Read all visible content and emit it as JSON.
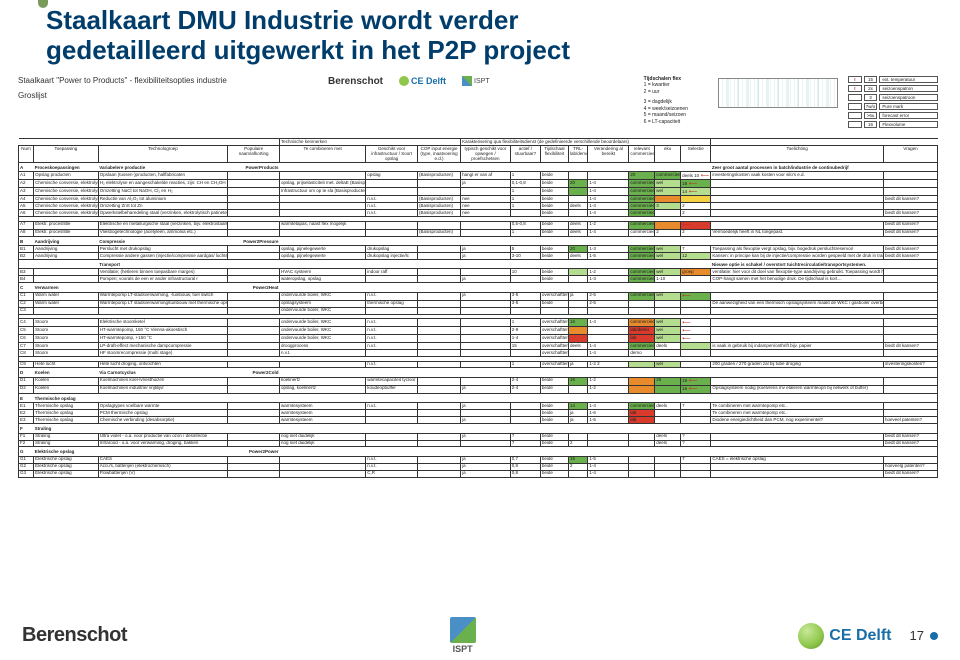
{
  "page": {
    "number": "17"
  },
  "title_line1": "Staalkaart DMU Industrie wordt verder",
  "title_line2": "gedetailleerd uitgewerkt in het P2P project",
  "sheet": {
    "title": "Staalkaart \"Power to Products\" - flexibiliteitsopties industrie",
    "subtitle": "Groslijst"
  },
  "logos": {
    "berenschot": "Berenschot",
    "ce": "CE Delft",
    "ispt": "ISPT"
  },
  "legend_time": {
    "title": "Tijdschalen flex",
    "items": [
      "1 = kwartier",
      "2 = uur",
      "3 = dagdelijk",
      "4 = week/seizoenen",
      "5 = maand/seizoen",
      "6 = LT-capaciteit"
    ]
  },
  "mini_boxes": [
    {
      "c1": "!",
      "c2": "15",
      "lab": "ext. temperatuur"
    },
    {
      "c1": "!",
      "c2": "2x",
      "lab": "seizoenspatron"
    },
    {
      "c1": "",
      "c2": "3",
      "lab": "seizoenspatroon"
    },
    {
      "c1": "",
      "c2": "7w/o",
      "lab": "Pure mark"
    },
    {
      "c1": "",
      "c2": ">6u",
      "lab": "forecast error"
    },
    {
      "c1": "",
      "c2": "16",
      "lab": "Flexvolume"
    }
  ],
  "headers": {
    "supers": [
      "Technische kenmerken",
      "",
      "Karakterisering qua flexibiliteitsdienst (de gedefinieerde verschillende beoordelaars)",
      ""
    ],
    "cols": [
      "Num",
      "Toepassing",
      "Technologroep",
      "Populaire naam/afkorting",
      "Te combineren met",
      "Geschikt voor infrastructuur / Soort opslag",
      "COP input energie (type, maatvoering e.d.)",
      "typisch geschikt voor opwegen / proefschetsen",
      "actief / stuurbaar?",
      "Tijdschaal flexibiliteit",
      "TRL-lab/demo/…",
      "Verandering al bereikt",
      "relevant commercieel",
      "eko",
      "Selectie",
      "Toelichting",
      "Vragen"
    ]
  },
  "sections": [
    {
      "letter": "A",
      "name": "Proceskoepassingen",
      "powercat": "PowerProducts",
      "techhead": "Variabelere productie",
      "note_right": "Zeer groot aantal processen in batch/industrie de continubedrijf",
      "rows": [
        {
          "num": "A1",
          "app": "Opslag producten",
          "tech": "Opslaan (tussen-)producten, halffabricaten",
          "pop": "",
          "comb": "",
          "ges": "opslag",
          "cop": "(Basisproducten)",
          "typ": "hangt er van af",
          "act": "1",
          "tijd": "beide",
          "trl": "",
          "ver": "",
          "rel_cls": "c-g",
          "rel": "20",
          "eko_cls": "c-g",
          "eko": "commercieel",
          "sel": "deels",
          "selnum": "10",
          "arrow": true,
          "toe": "investeringskosten vaak kosten voor silo's e.d."
        },
        {
          "num": "A2",
          "app": "Chemische conversie, elektrolyse",
          "tech": "H₂ elektrolyse en aangeschakelde reacties, zijn: CH en CH₂OH",
          "comb": "opslag, prijselasticiteit met. deltaE (Basisproducten)",
          "typ": "ja",
          "act": "0,1-0,8",
          "tijd": "beide",
          "trl_cls": "c-g",
          "trl": "20",
          "ver": "1-4",
          "rel_cls": "c-g",
          "rel": "commercieel",
          "eko_cls": "c-lg",
          "eko": "wel",
          "sel_cls": "c-g",
          "sel": "18",
          "arrow": true
        },
        {
          "num": "A3",
          "app": "Chemische conversie, elektrolyse",
          "tech": "Omzetting NaCl tot NaOH, Cl₂ en H₂",
          "comb": "Infrastructuur om op te sla (Basisproducten)",
          "act": "1",
          "tijd": "beide",
          "trl_cls": "c-g",
          "trl": "",
          "ver": "1-4",
          "rel_cls": "c-g",
          "rel": "commercieel",
          "eko_cls": "c-lg",
          "eko": "wel",
          "sel_cls": "c-lg",
          "sel": "14",
          "arrow": true
        },
        {
          "num": "A4",
          "app": "Chemische conversie, elektrolyse",
          "tech": "Reductie van Al₂O₃ tot aluminium",
          "ges": "n.v.t.",
          "cop": "(Basisproducten)",
          "typ": "nee",
          "act": "1",
          "tijd": "beide",
          "ver": "1-4",
          "rel_cls": "c-g",
          "rel": "commercieel",
          "eko_cls": "c-o",
          "eko": "",
          "sel_cls": "c-y",
          "sel": "",
          "vra": "biedt dit kansen?"
        },
        {
          "num": "A5",
          "app": "Chemische conversie, elektrolyse",
          "tech": "Omzetting ZnS tot Zn",
          "ges": "n.v.t.",
          "cop": "(Basisproducten)",
          "typ": "nee",
          "act": "1",
          "tijd": "beide",
          "trl": "deels",
          "ver": "1-4",
          "rel_cls": "c-g",
          "rel": "commercieel",
          "eko_cls": "c-lg",
          "eko": "3",
          "sel_cls": "",
          "sel": "2"
        },
        {
          "num": "A6",
          "app": "Chemische conversie, elektrolyse",
          "tech": "Opwerkstelbeharedeling staal (verzinken, elektrolytisch patinete)",
          "ges": "n.v.t.",
          "cop": "(Basisproducten)",
          "typ": "nee",
          "tijd": "beide",
          "ver": "1-4",
          "rel_cls": "c-g",
          "rel": "commercieel",
          "sel": "2",
          "vra": "biedt dit kansen?"
        },
        {
          "spacer": true
        },
        {
          "num": "A7",
          "app": "Elektr. procesflitle",
          "tech": "Elektrische en metallurgische staal (verzinken, bijv. elektrostaals, SiC…",
          "comb": "warmtetapas, naast flex mogelijk",
          "ges": "",
          "typ": "",
          "act": "0,5-0,8",
          "tijd": "beide",
          "trl": "deels",
          "ver": "1-2",
          "rel_cls": "c-g",
          "rel": "commercieel",
          "eko_cls": "c-o",
          "eko": "",
          "sel_cls": "c-r",
          "sel": "",
          "arrow": true,
          "vra": "biedt dit kansen?"
        },
        {
          "num": "A8",
          "app": "Elektr. procesflitle",
          "tech": "Vliesbogetechnologie (acetyleen, ammonia etc.)",
          "ges": "",
          "cop": "(Basisproducten)",
          "typ": "",
          "act": "1",
          "tijd": "beide",
          "trl": "deels",
          "ver": "1-4",
          "rel_cls": "",
          "rel": "commercieel",
          "eko": "2",
          "sel": "2",
          "toe": "Vermoedelijk heeft in NL toegepast.",
          "vra": "biedt dit kansen?"
        }
      ]
    },
    {
      "letter": "B",
      "name": "Aandrijving",
      "powercat": "Power2Pressure",
      "techhead": "Compressie",
      "rows": [
        {
          "num": "B1",
          "app": "Aandrijving",
          "tech": "Perslucht met drukopslag",
          "comb": "opslag, pijnelegewerte",
          "ges": "drukopslag",
          "typ": "ja",
          "act": "5",
          "tijd": "beide",
          "trl_cls": "c-g",
          "trl": "20",
          "ver": "1-3",
          "rel_cls": "c-g",
          "rel": "commercieel",
          "eko_cls": "c-lg",
          "eko": "wei",
          "sel": "7",
          "toe": "Toepassing als flexoptie vergt opslag, bijv. bogedruk persluchtreservoir",
          "vra": "biedt dit kansen?"
        },
        {
          "num": "B2",
          "app": "Aandrijving",
          "tech": "Compressie andere gassen (injectie/compressie aardgas/ luchtscheidng)",
          "comb": "opslag, pijnelegewerte",
          "ges": "drukopslag injectie/lc",
          "typ": "ja",
          "act": "3-10",
          "tijd": "beide",
          "trl": "deels",
          "ver": "1-5",
          "rel_cls": "c-g",
          "rel": "commercieel",
          "eko_cls": "c-lg",
          "eko": "wel",
          "sel_cls": "c-lg",
          "sel": "12",
          "toe": "Kansen: in principe kan bij de injectie/compressie worden gespeeld met de druk in transportnet…",
          "vra": "biedt dit kansen?"
        },
        {
          "spacer": true,
          "techhead": "Transport",
          "toe_extra": "Nieuwe optie is schakel / overstort tuichtrecirculatie/transportsystemen."
        },
        {
          "num": "B3",
          "app": "",
          "tech": "Ventilatie; (hetleren binnen toepasbare marges)",
          "comb": "HVAC systeem",
          "ges": "indoor raff",
          "act": "10",
          "tijd": "beide",
          "trl_cls": "c-lg",
          "trl": "",
          "ver": "1-2",
          "rel_cls": "c-g",
          "rel": "commercieel",
          "eko_cls": "c-lg",
          "eko": "wel",
          "sel_cls": "c-o",
          "sel": "groep",
          "toe": "ventilatie: hier voor dit doel van flexoptie-type aandrijving gebruikt. Toepassing wordt het met groot…"
        },
        {
          "num": "B4",
          "app": "",
          "tech": "Pompen; voorals de een er ander infrastructural r",
          "comb": "wateropslag, opslag",
          "ges": "",
          "typ": "ja",
          "tijd": "beide",
          "ver": "1-3",
          "rel_cls": "c-g",
          "rel": "commercieel",
          "eko": "1-10",
          "sel": "",
          "toe": "COP-hangt samen met het benodige druk. De tijdschaal is kort…"
        }
      ]
    },
    {
      "letter": "C",
      "name": "Verwarmen",
      "powercat": "Power2Heat",
      "techhead": "",
      "rows": [
        {
          "num": "C1",
          "app": "Warm water",
          "tech": "Warmtepomp LT-stadsverwarming, -tuinbouw, fuel switch",
          "comb": "ondervuurde boiler, WKC",
          "ges": "n.v.t.",
          "typ": "ja",
          "act": "3-5",
          "tijd": "overschaftten",
          "trl": "ja",
          "ver": "2-5",
          "rel_cls": "c-g",
          "rel": "commercieel",
          "eko_cls": "c-lg",
          "eko": "wel",
          "sel_cls": "c-g",
          "sel": "",
          "arrow": true
        },
        {
          "num": "C2",
          "app": "Warm water",
          "tech": "Warmtepomp LT stadsverwarming/tuinbouw met thermische opslag",
          "comb": "opslagsysteem",
          "ges": "thermische opslag",
          "act": "3-5",
          "tijd": "beide",
          "ver": "2-5",
          "rel_cls": "",
          "rel": "",
          "eko": "",
          "sel": "",
          "toe": "De aanwezigheid van een thermisch opslagsysteem maakt de WKC / gasboiler overbodig"
        },
        {
          "num": "C3",
          "app": "",
          "tech": "",
          "comb": "ondervuurde boiler, WKC",
          "vra": ""
        },
        {
          "spacer": true
        },
        {
          "num": "C4",
          "app": "Stoom",
          "tech": "Elektrische stoomketel",
          "comb": "ondervuurde boiler, WKC",
          "ges": "n.v.t.",
          "act": "1",
          "tijd": "overschaftten",
          "trl_cls": "c-g",
          "trl": "16",
          "ver": "1-4",
          "rel_cls": "c-o",
          "rel": "commercieel",
          "eko_cls": "c-lg",
          "eko": "wel",
          "sel_cls": "",
          "sel": "",
          "arrow": true
        },
        {
          "num": "C5",
          "app": "Stoom",
          "tech": "HT-warmtepomp, 150 °C Vienna-akoestisch",
          "comb": "ondervuurde boiler, WKC",
          "ges": "n.v.t.",
          "act": "2-9",
          "tijd": "overschaftten",
          "trl_cls": "c-o",
          "trl": "",
          "ver": "",
          "rel_cls": "c-r",
          "rel": "lab/demo",
          "eko_cls": "c-lg",
          "eko": "wei",
          "sel_cls": "",
          "sel": "",
          "arrow": true
        },
        {
          "num": "C6",
          "app": "Stoom",
          "tech": "HT-warmtepomp, +150 °C",
          "comb": "ondervuurde boiler, WKC",
          "ges": "n.v.t.",
          "act": "1-4",
          "tijd": "overschaftten",
          "trl_cls": "c-r",
          "trl": "",
          "ver": "",
          "rel_cls": "c-r",
          "rel": "lab",
          "eko_cls": "c-lg",
          "eko": "wel",
          "sel": "",
          "arrow": true
        },
        {
          "num": "C7",
          "app": "Stoom",
          "tech": "LP-draft-effect mechanische dampcompressie",
          "comb": "droogprocess",
          "ges": "n.v.t.",
          "act": "15",
          "tijd": "overschaftten",
          "trl": "deels",
          "ver": "1-4",
          "rel_cls": "c-g",
          "rel": "commercieel",
          "eko": "deels",
          "sel_cls": "c-lg",
          "sel": "",
          "toe": "is vaak in gebruik bij indampen/onthrift bijv. papier",
          "vra": "biedt dit kansen?"
        },
        {
          "num": "C8",
          "app": "Stoom",
          "tech": "HF stoomrecompressie (multi stage)",
          "comb": "n.v.t.",
          "ges": "",
          "act": "",
          "tijd": "overschaftten",
          "trl": "",
          "ver": "1-4",
          "rel_cls": "",
          "rel": "demo",
          "eko": "",
          "sel": "",
          "toe": "",
          "vra": ""
        },
        {
          "spacer": true
        },
        {
          "num": "C9",
          "app": "Hete lucht",
          "tech": "Hete lucht droging, ontvochten",
          "comb": "",
          "ges": "n.v.t.",
          "act": "1",
          "tijd": "overschaftten",
          "trl": "ja",
          "ver": "1-2 2",
          "rel_cls": "c-lg",
          "rel": "",
          "eko_cls": "c-lg",
          "eko": "wel",
          "sel": "",
          "toe": "200 graden / 270 graden zal bij tube droging",
          "vra": "investeringskosten?"
        }
      ]
    },
    {
      "letter": "D",
      "name": "Koelen",
      "powercat": "Power2Cold",
      "techhead": "Via Carnotcyclus",
      "rows": [
        {
          "num": "D1",
          "app": "Koelen",
          "tech": "Koelmachines koel-/vriesthuizen",
          "comb": "koelinertz",
          "ges": "warmtecapaciteit tycloor",
          "act": "2-4",
          "tijd": "beide",
          "trl_cls": "c-g",
          "trl": "16",
          "ver": "1-2",
          "rel_cls": "c-o",
          "rel": "",
          "eko_cls": "c-g",
          "eko": "25",
          "sel_cls": "c-g",
          "sel": "19",
          "arrow": true
        },
        {
          "num": "D2",
          "app": "Koelen",
          "tech": "Koelmachines industrie/ vrijblijvr",
          "comb": "opslag, koelinertz",
          "ges": "koudeopbuffer",
          "typ": "ja",
          "act": "2-4",
          "tijd": "beide",
          "trl_cls": "",
          "trl": "",
          "ver": "1-2",
          "rel_cls": "c-o",
          "rel": "",
          "eko_cls": "c-g",
          "eko": "",
          "sel_cls": "c-g",
          "sel": "16",
          "arrow": true,
          "toe": "Opslagsysteem nodig (koelvrens mv etaleren warmteopn bij netwerk of buffer)"
        }
      ]
    },
    {
      "letter": "E",
      "name": "Thermische opslag",
      "powercat": "",
      "techhead": "",
      "rows": [
        {
          "num": "E1",
          "app": "Thermische opslag",
          "tech": "Opslagtypes voelbare warmte",
          "comb": "warmtesysteem",
          "ges": "n.v.t.",
          "typ": "ja",
          "act": "",
          "tijd": "beide",
          "trl_cls": "c-g",
          "trl": "14",
          "ver": "1-4",
          "rel_cls": "c-g",
          "rel": "commercieel",
          "eko": "deels",
          "sel": "7",
          "toe": "Te combineren met warmtepomp etc.."
        },
        {
          "num": "E2",
          "app": "Thermische opslag",
          "tech": "PCM thermische opslag",
          "comb": "warmtesysteem",
          "ges": "",
          "act": "",
          "tijd": "beide",
          "trl": "ja",
          "ver": "1-6",
          "rel_cls": "c-r",
          "rel": "lab",
          "eko": "",
          "sel": "",
          "toe": "Te combineren met warmtepomp etc.."
        },
        {
          "num": "E3",
          "app": "Thermische opslag",
          "tech": "Chemische verbinding (desabsorptie)",
          "comb": "warmtesysteem",
          "ges": "",
          "typ": "ja",
          "act": "",
          "tijd": "beide",
          "trl": "ja",
          "ver": "1-5",
          "rel_cls": "c-r",
          "rel": "lab",
          "eko": "",
          "sel": "",
          "toe": "Diodene energiedichtheid dan PCM, nog experimentel?",
          "vra": "hoeveel patenten?"
        }
      ]
    },
    {
      "letter": "F",
      "name": "Straling",
      "powercat": "",
      "techhead": "",
      "rows": [
        {
          "num": "F1",
          "app": "Straling",
          "tech": "Ultra violet - o.a. voor productie van ozon / desinfectie",
          "comb": "nog niet duidelijk",
          "typ": "ja",
          "act": "?",
          "tijd": "beide",
          "ver": "",
          "rel_cls": "",
          "rel": "",
          "eko": "deels",
          "sel": "?",
          "vra": "biedt dit kansen?"
        },
        {
          "num": "F2",
          "app": "Straling",
          "tech": "Infrarood - o.a. voor verwarming, droging, bakken",
          "comb": "nog niet duidelijk",
          "act": "?",
          "tijd": "beide",
          "trl": "2",
          "ver": "",
          "rel_cls": "",
          "rel": "",
          "eko": "deels",
          "sel": "?",
          "vra": "biedt dit kansen?"
        }
      ]
    },
    {
      "letter": "G",
      "name": "Elektrische opslag",
      "powercat": "Power2Power",
      "techhead": "",
      "rows": [
        {
          "num": "G1",
          "app": "Elektrische opslag",
          "tech": "CAES",
          "comb": "",
          "ges": "n.v.t.",
          "typ": "ja",
          "act": "0,7",
          "tijd": "beide",
          "trl_cls": "c-g",
          "trl": "16",
          "ver": "1-5",
          "rel_cls": "",
          "rel": "",
          "eko": "",
          "sel": "7",
          "toe": "CAES = elektrische opslag"
        },
        {
          "num": "G2",
          "app": "Elektrische opslag",
          "tech": "Accu's, batterijen (elektrochemisch)",
          "comb": "",
          "ges": "n.v.t.",
          "typ": "ja",
          "act": "0,9",
          "tijd": "beide",
          "trl": "2",
          "ver": "1-4",
          "rel_cls": "",
          "rel": "",
          "eko": "",
          "sel": "",
          "vra": "hoeveelg patenten?"
        },
        {
          "num": "G3",
          "app": "Elektrische opslag",
          "tech": "Flowbatterijen (V)",
          "comb": "",
          "ges": "C,R",
          "typ": "ja",
          "act": "0,8",
          "tijd": "beide",
          "trl": "",
          "ver": "1-4",
          "rel_cls": "",
          "rel": "",
          "eko": "",
          "sel": "",
          "vra": "biedt dit kansen?"
        }
      ]
    }
  ]
}
